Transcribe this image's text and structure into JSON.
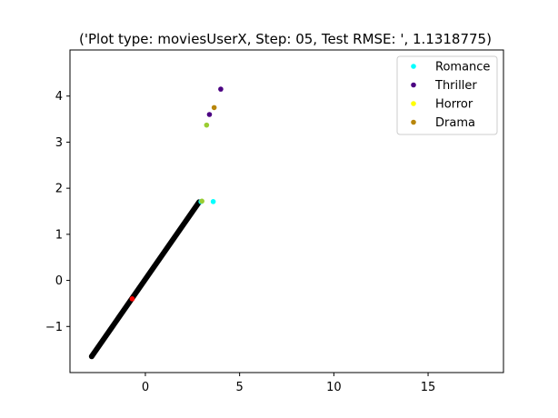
{
  "chart_data": {
    "type": "scatter",
    "title": "('Plot type: moviesUserX, Step: 05, Test RMSE: ', 1.1318775)",
    "xlabel": "",
    "ylabel": "",
    "xlim": [
      -4,
      19
    ],
    "ylim": [
      -2,
      5
    ],
    "xticks": [
      0,
      5,
      10,
      15
    ],
    "yticks": [
      -1,
      0,
      1,
      2,
      3,
      4
    ],
    "grid": false,
    "legend_position": "top-right",
    "line_band": {
      "start": [
        -2.85,
        -1.65
      ],
      "end": [
        2.85,
        1.7
      ],
      "color": "#000000"
    },
    "series": [
      {
        "name": "Romance",
        "color": "#00ffff",
        "points": [
          [
            2.95,
            1.71
          ],
          [
            3.6,
            1.71
          ]
        ]
      },
      {
        "name": "Thriller",
        "color": "#4b0082",
        "points": [
          [
            4.0,
            4.15
          ],
          [
            3.4,
            3.6
          ]
        ]
      },
      {
        "name": "Horror",
        "color": "#ffff00",
        "points": []
      },
      {
        "name": "Drama",
        "color": "#b8860b",
        "points": [
          [
            3.65,
            3.75
          ]
        ]
      }
    ],
    "extra_points": [
      {
        "x": 3.25,
        "y": 3.37,
        "color": "#9acd32"
      },
      {
        "x": -0.7,
        "y": -0.4,
        "color": "#ff0000"
      },
      {
        "x": 3.0,
        "y": 1.72,
        "color": "#9acd32"
      }
    ]
  }
}
